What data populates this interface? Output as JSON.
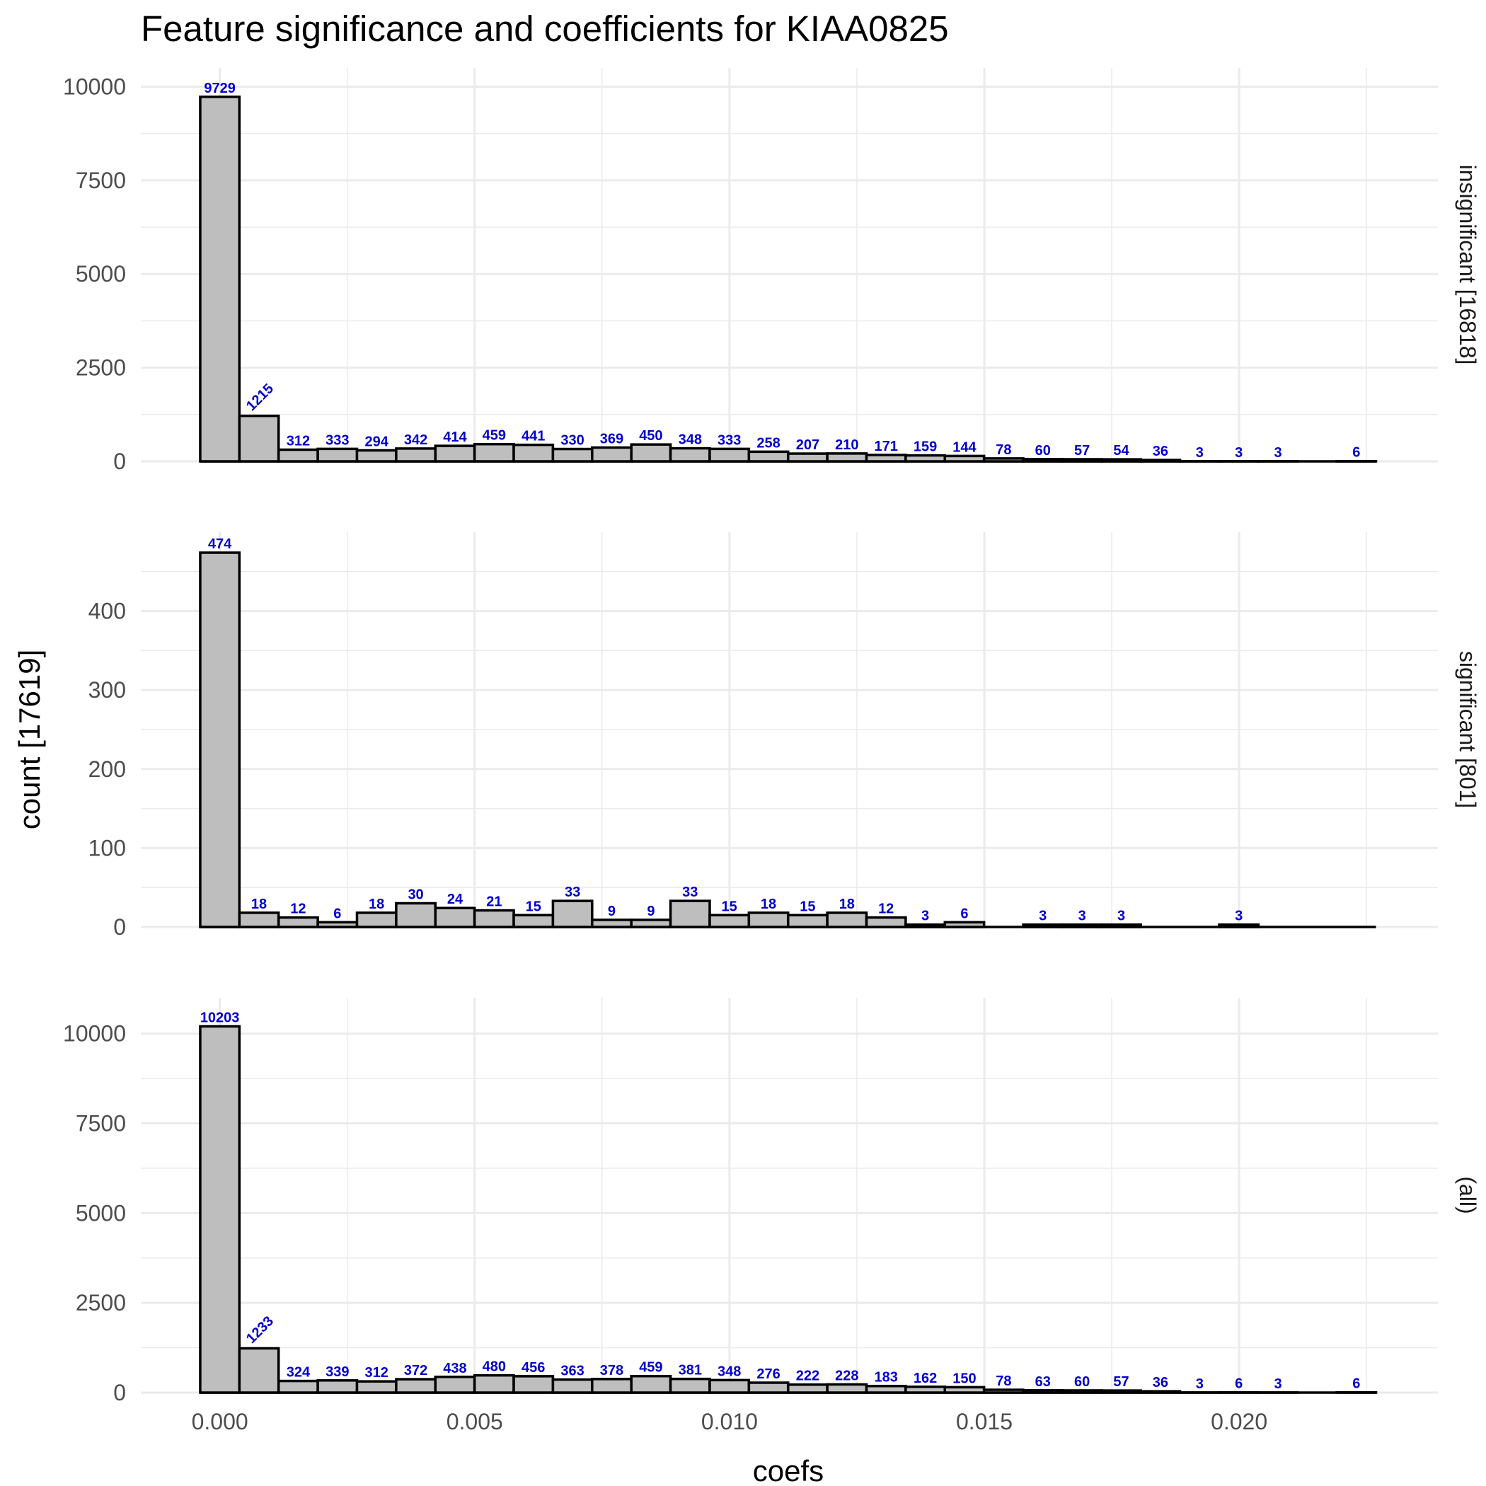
{
  "chart_data": {
    "type": "bar",
    "title": "Feature significance and coefficients for KIAA0825",
    "xlabel": "coefs",
    "ylabel": "count [17619]",
    "bar_fill": "#bebebe",
    "bar_outline": "#000000",
    "label_color": "#0000cc",
    "grid": true,
    "xlim": [
      -0.00155,
      0.0239
    ],
    "x_ticks": [
      0.0,
      0.005,
      0.01,
      0.015,
      0.02
    ],
    "x_tick_labels": [
      "0.000",
      "0.005",
      "0.010",
      "0.015",
      "0.020"
    ],
    "bin_width": 0.000769,
    "bin_centers": [
      0.0,
      0.000769,
      0.001538,
      0.002307,
      0.003076,
      0.003845,
      0.004614,
      0.005383,
      0.006152,
      0.006921,
      0.00769,
      0.008459,
      0.009228,
      0.009997,
      0.010766,
      0.011535,
      0.012304,
      0.013073,
      0.013842,
      0.014611,
      0.01538,
      0.016149,
      0.016918,
      0.017687,
      0.018456,
      0.019225,
      0.019994,
      0.020763,
      0.021532,
      0.022301
    ],
    "panels": [
      {
        "strip": "insignificant [16818]",
        "ylim": [
          0,
          10500
        ],
        "y_ticks": [
          0,
          2500,
          5000,
          7500,
          10000
        ],
        "y_tick_labels": [
          "0",
          "2500",
          "5000",
          "7500",
          "10000"
        ],
        "values": [
          9729,
          1215,
          312,
          333,
          294,
          342,
          414,
          459,
          441,
          330,
          369,
          450,
          348,
          333,
          258,
          207,
          210,
          171,
          159,
          144,
          78,
          60,
          57,
          54,
          36,
          3,
          3,
          3,
          0,
          6
        ],
        "labels": [
          "9729",
          "1215",
          "312",
          "333",
          "294",
          "342",
          "414",
          "459",
          "441",
          "330",
          "369",
          "450",
          "348",
          "333",
          "258",
          "207",
          "210",
          "171",
          "159",
          "144",
          "78",
          "60",
          "57",
          "54",
          "36",
          "3",
          "3",
          "3",
          "",
          "6"
        ]
      },
      {
        "strip": "significant [801]",
        "ylim": [
          0,
          500
        ],
        "y_ticks": [
          0,
          100,
          200,
          300,
          400
        ],
        "y_tick_labels": [
          "0",
          "100",
          "200",
          "300",
          "400"
        ],
        "values": [
          474,
          18,
          12,
          6,
          18,
          30,
          24,
          21,
          15,
          33,
          9,
          9,
          33,
          15,
          18,
          15,
          18,
          12,
          3,
          6,
          0,
          3,
          3,
          3,
          0,
          0,
          3,
          0,
          0,
          0
        ],
        "labels": [
          "474",
          "18",
          "12",
          "6",
          "18",
          "30",
          "24",
          "21",
          "15",
          "33",
          "9",
          "9",
          "33",
          "15",
          "18",
          "15",
          "18",
          "12",
          "3",
          "6",
          "",
          "3",
          "3",
          "3",
          "",
          "",
          "3",
          "",
          "",
          ""
        ]
      },
      {
        "strip": "(all)",
        "ylim": [
          0,
          11000
        ],
        "y_ticks": [
          0,
          2500,
          5000,
          7500,
          10000
        ],
        "y_tick_labels": [
          "0",
          "2500",
          "5000",
          "7500",
          "10000"
        ],
        "values": [
          10203,
          1233,
          324,
          339,
          312,
          372,
          438,
          480,
          456,
          363,
          378,
          459,
          381,
          348,
          276,
          222,
          228,
          183,
          162,
          150,
          78,
          63,
          60,
          57,
          36,
          3,
          6,
          3,
          0,
          6
        ],
        "labels": [
          "10203",
          "1233",
          "324",
          "339",
          "312",
          "372",
          "438",
          "480",
          "456",
          "363",
          "378",
          "459",
          "381",
          "348",
          "276",
          "222",
          "228",
          "183",
          "162",
          "150",
          "78",
          "63",
          "60",
          "57",
          "36",
          "3",
          "6",
          "3",
          "",
          "6"
        ]
      }
    ]
  }
}
